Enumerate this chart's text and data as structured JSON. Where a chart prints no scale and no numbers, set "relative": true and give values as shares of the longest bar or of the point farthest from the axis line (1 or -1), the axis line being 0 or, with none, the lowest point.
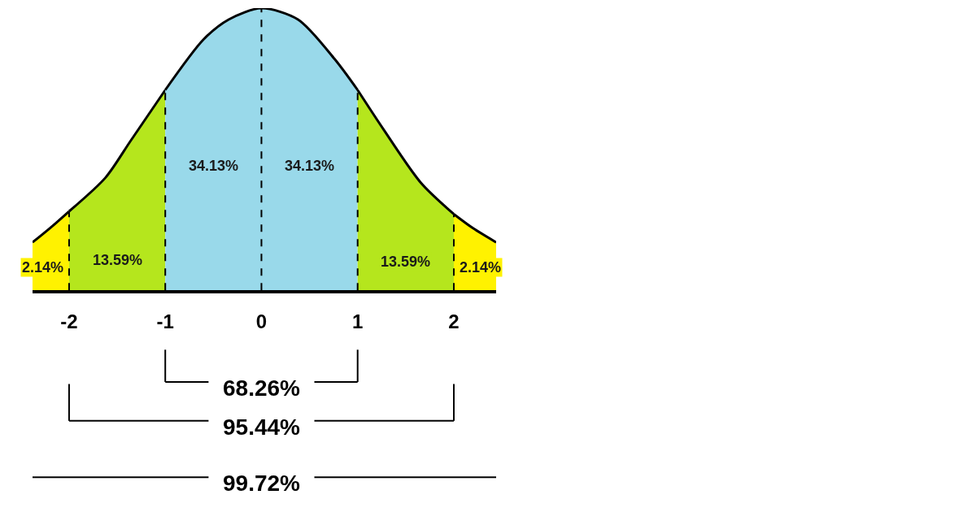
{
  "chart_data": {
    "type": "area",
    "relative": true,
    "series": [
      {
        "color": "#fff200",
        "x": [
          -2.38,
          -2.2,
          -2.0
        ],
        "values": [
          0.17,
          0.22,
          0.28
        ]
      },
      {
        "color": "#b5e61d",
        "x": [
          -2.0,
          -1.62,
          -1.36,
          -1.0
        ],
        "values": [
          0.28,
          0.4,
          0.53,
          0.71
        ]
      },
      {
        "color": "#99d9ea",
        "x": [
          -1.0,
          -0.6,
          -0.34,
          0.0,
          0.38,
          0.76,
          1.0
        ],
        "values": [
          0.71,
          0.89,
          0.96,
          1.0,
          0.96,
          0.82,
          0.71
        ]
      },
      {
        "color": "#b5e61d",
        "x": [
          1.0,
          1.27,
          1.66,
          2.0
        ],
        "values": [
          0.71,
          0.57,
          0.38,
          0.27
        ]
      },
      {
        "color": "#fff200",
        "x": [
          2.0,
          2.2,
          2.44
        ],
        "values": [
          0.27,
          0.22,
          0.17
        ]
      }
    ],
    "xlim": [
      -2.38,
      2.44
    ],
    "xticks": [
      -2,
      -1,
      0,
      1,
      2
    ],
    "ref_lines": [
      {
        "axis": "x",
        "value": -2,
        "line_style": "dashed"
      },
      {
        "axis": "x",
        "value": -1,
        "line_style": "dashed"
      },
      {
        "axis": "x",
        "value": 0,
        "line_style": "dashed"
      },
      {
        "axis": "x",
        "value": 1,
        "line_style": "dashed"
      },
      {
        "axis": "x",
        "value": 2,
        "line_style": "dashed"
      }
    ],
    "annotations": [
      "2.14%",
      "13.59%",
      "34.13%",
      "34.13%",
      "13.59%",
      "2.14%",
      "68.26%",
      "95.44%",
      "99.72%"
    ]
  }
}
